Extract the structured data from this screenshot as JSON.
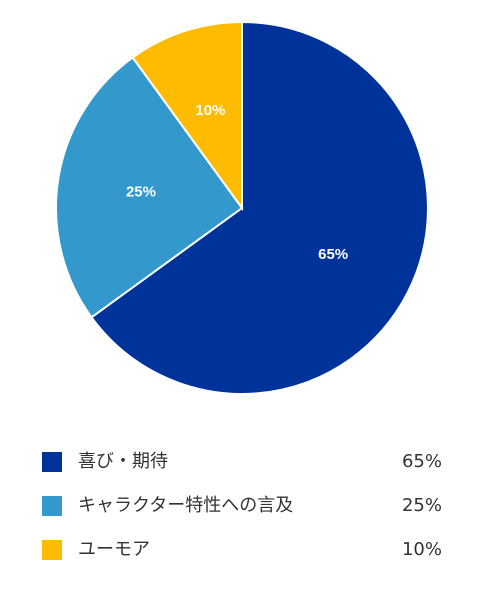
{
  "chart_data": {
    "type": "pie",
    "categories": [
      "喜び・期待",
      "キャラクター特性への言及",
      "ユーモア"
    ],
    "values": [
      65,
      25,
      10
    ],
    "value_labels": [
      "65%",
      "25%",
      "10%"
    ],
    "colors": [
      "#003399",
      "#3399CC",
      "#FFBB00"
    ],
    "legend_placement": "bottom"
  },
  "legend": {
    "items": [
      {
        "label": "喜び・期待",
        "value": "65%",
        "color": "#003399"
      },
      {
        "label": "キャラクター特性への言及",
        "value": "25%",
        "color": "#3399CC"
      },
      {
        "label": "ユーモア",
        "value": "10%",
        "color": "#FFBB00"
      }
    ]
  }
}
